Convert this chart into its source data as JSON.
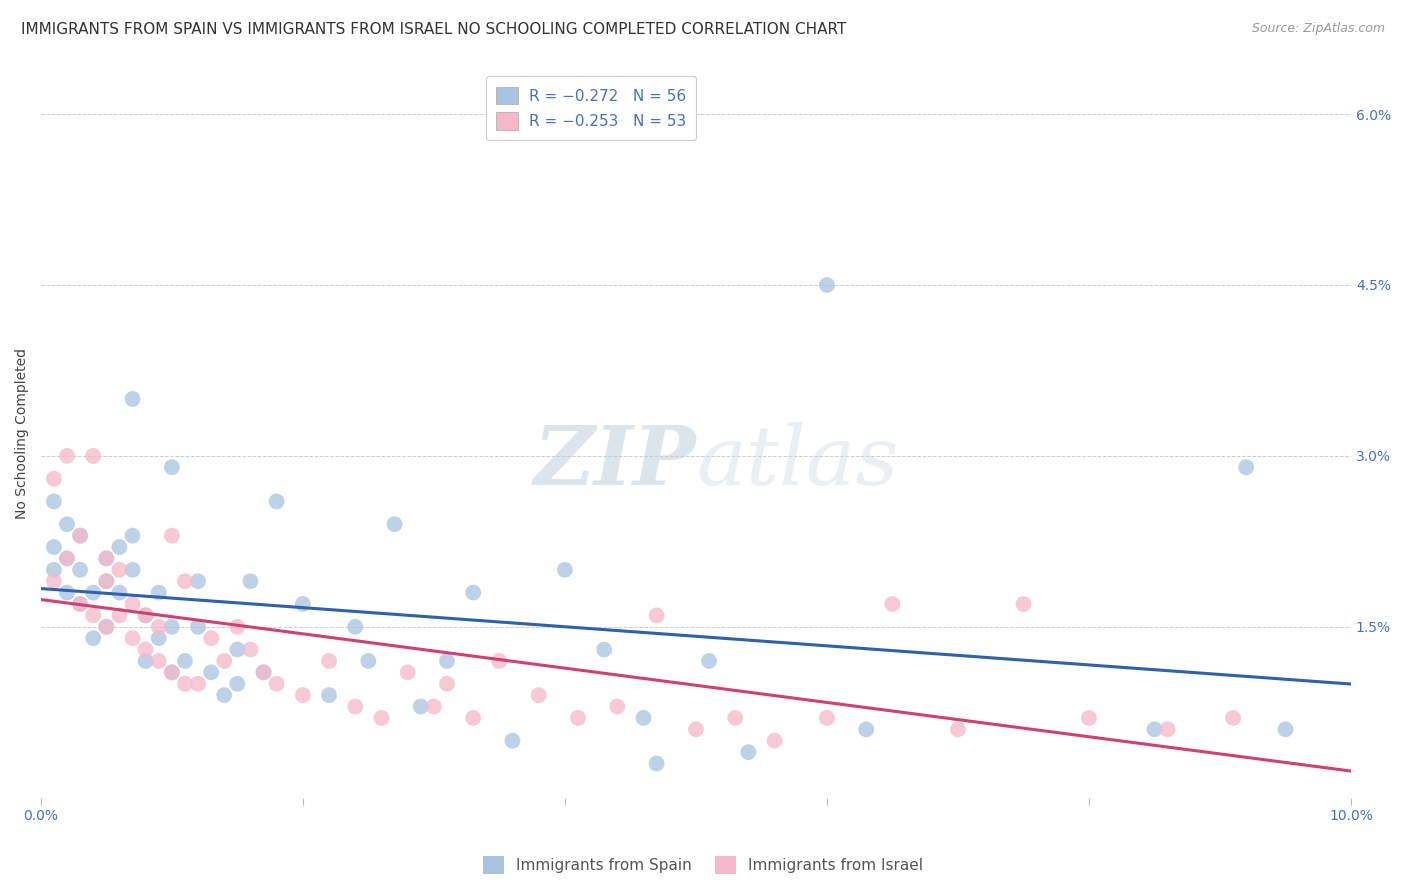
{
  "title": "IMMIGRANTS FROM SPAIN VS IMMIGRANTS FROM ISRAEL NO SCHOOLING COMPLETED CORRELATION CHART",
  "source": "Source: ZipAtlas.com",
  "ylabel": "No Schooling Completed",
  "xlabel": "",
  "series1_label": "Immigrants from Spain",
  "series2_label": "Immigrants from Israel",
  "series1_color": "#a8c4e0",
  "series2_color": "#f4b8c8",
  "series1_line_color": "#3060b0",
  "series2_line_color": "#d04070",
  "legend_r1": "R = -0.272",
  "legend_n1": "N = 56",
  "legend_r2": "R = -0.253",
  "legend_n2": "N = 53",
  "xlim": [
    0.0,
    0.1
  ],
  "ylim": [
    0.0,
    0.064
  ],
  "xticks": [
    0.0,
    0.02,
    0.04,
    0.06,
    0.08,
    0.1
  ],
  "yticks": [
    0.0,
    0.015,
    0.03,
    0.045,
    0.06
  ],
  "background_color": "#ffffff",
  "spain_x": [
    0.001,
    0.001,
    0.001,
    0.002,
    0.002,
    0.002,
    0.003,
    0.003,
    0.003,
    0.004,
    0.004,
    0.005,
    0.005,
    0.005,
    0.006,
    0.006,
    0.007,
    0.007,
    0.007,
    0.008,
    0.008,
    0.009,
    0.009,
    0.01,
    0.01,
    0.01,
    0.011,
    0.012,
    0.012,
    0.013,
    0.014,
    0.015,
    0.015,
    0.016,
    0.017,
    0.018,
    0.02,
    0.022,
    0.024,
    0.025,
    0.027,
    0.029,
    0.031,
    0.033,
    0.036,
    0.04,
    0.043,
    0.046,
    0.047,
    0.051,
    0.054,
    0.06,
    0.063,
    0.085,
    0.092,
    0.095
  ],
  "spain_y": [
    0.02,
    0.022,
    0.026,
    0.018,
    0.021,
    0.024,
    0.017,
    0.02,
    0.023,
    0.014,
    0.018,
    0.015,
    0.019,
    0.021,
    0.018,
    0.022,
    0.02,
    0.023,
    0.035,
    0.012,
    0.016,
    0.014,
    0.018,
    0.011,
    0.015,
    0.029,
    0.012,
    0.015,
    0.019,
    0.011,
    0.009,
    0.01,
    0.013,
    0.019,
    0.011,
    0.026,
    0.017,
    0.009,
    0.015,
    0.012,
    0.024,
    0.008,
    0.012,
    0.018,
    0.005,
    0.02,
    0.013,
    0.007,
    0.003,
    0.012,
    0.004,
    0.045,
    0.006,
    0.006,
    0.029,
    0.006
  ],
  "israel_x": [
    0.001,
    0.001,
    0.002,
    0.002,
    0.003,
    0.003,
    0.004,
    0.004,
    0.005,
    0.005,
    0.005,
    0.006,
    0.006,
    0.007,
    0.007,
    0.008,
    0.008,
    0.009,
    0.009,
    0.01,
    0.01,
    0.011,
    0.011,
    0.012,
    0.013,
    0.014,
    0.015,
    0.016,
    0.017,
    0.018,
    0.02,
    0.022,
    0.024,
    0.026,
    0.028,
    0.03,
    0.031,
    0.033,
    0.035,
    0.038,
    0.041,
    0.044,
    0.047,
    0.05,
    0.053,
    0.056,
    0.06,
    0.065,
    0.07,
    0.075,
    0.08,
    0.086,
    0.091
  ],
  "israel_y": [
    0.028,
    0.019,
    0.021,
    0.03,
    0.017,
    0.023,
    0.016,
    0.03,
    0.015,
    0.019,
    0.021,
    0.016,
    0.02,
    0.014,
    0.017,
    0.013,
    0.016,
    0.012,
    0.015,
    0.011,
    0.023,
    0.01,
    0.019,
    0.01,
    0.014,
    0.012,
    0.015,
    0.013,
    0.011,
    0.01,
    0.009,
    0.012,
    0.008,
    0.007,
    0.011,
    0.008,
    0.01,
    0.007,
    0.012,
    0.009,
    0.007,
    0.008,
    0.016,
    0.006,
    0.007,
    0.005,
    0.007,
    0.017,
    0.006,
    0.017,
    0.007,
    0.006,
    0.007
  ],
  "watermark_zip": "ZIP",
  "watermark_atlas": "atlas",
  "title_fontsize": 11,
  "axis_label_fontsize": 10,
  "tick_fontsize": 10,
  "legend_fontsize": 11,
  "source_fontsize": 9
}
